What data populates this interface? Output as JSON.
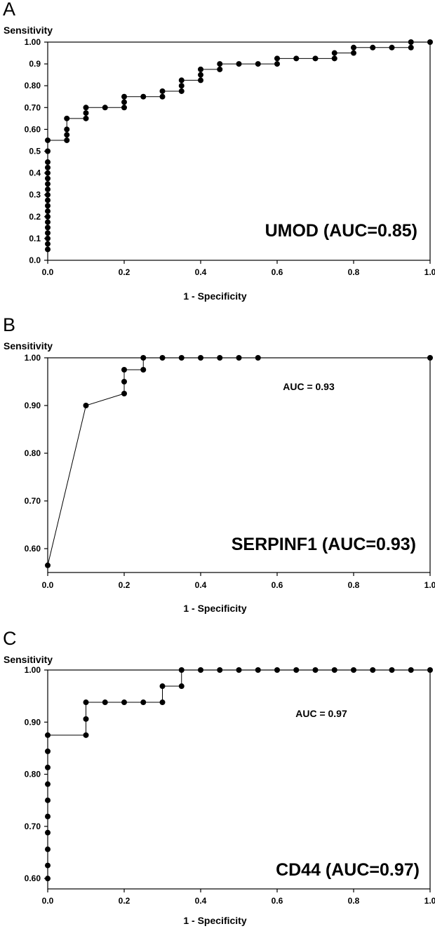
{
  "chart_data": [
    {
      "type": "line",
      "panel_label": "A",
      "ylabel": "Sensitivity",
      "xlabel": "1 - Specificity",
      "annotation": "UMOD (AUC=0.85)",
      "xlim": [
        0,
        1.0
      ],
      "ylim": [
        0,
        1.0
      ],
      "xticks": [
        {
          "v": 0.0,
          "label": "0.0"
        },
        {
          "v": 0.2,
          "label": "0.2"
        },
        {
          "v": 0.4,
          "label": "0.4"
        },
        {
          "v": 0.6,
          "label": "0.6"
        },
        {
          "v": 0.8,
          "label": "0.8"
        },
        {
          "v": 1.0,
          "label": "1.0"
        }
      ],
      "yticks": [
        {
          "v": 0.0,
          "label": "0.0"
        },
        {
          "v": 0.1,
          "label": "0.1"
        },
        {
          "v": 0.2,
          "label": "0.2"
        },
        {
          "v": 0.3,
          "label": "0.3"
        },
        {
          "v": 0.4,
          "label": "0.4"
        },
        {
          "v": 0.5,
          "label": "0.5"
        },
        {
          "v": 0.6,
          "label": "0.60"
        },
        {
          "v": 0.7,
          "label": "0.70"
        },
        {
          "v": 0.8,
          "label": "0.80"
        },
        {
          "v": 0.9,
          "label": "0.9"
        },
        {
          "v": 1.0,
          "label": "1.00"
        }
      ],
      "x": [
        0,
        0,
        0,
        0,
        0,
        0,
        0,
        0,
        0,
        0,
        0,
        0,
        0,
        0,
        0,
        0,
        0,
        0,
        0,
        0.05,
        0.05,
        0.05,
        0.05,
        0.1,
        0.1,
        0.1,
        0.15,
        0.2,
        0.2,
        0.2,
        0.25,
        0.3,
        0.3,
        0.35,
        0.35,
        0.35,
        0.4,
        0.4,
        0.4,
        0.45,
        0.45,
        0.5,
        0.55,
        0.6,
        0.6,
        0.65,
        0.7,
        0.75,
        0.75,
        0.8,
        0.8,
        0.85,
        0.9,
        0.95,
        0.95,
        1.0
      ],
      "y": [
        0.05,
        0.075,
        0.1,
        0.125,
        0.15,
        0.175,
        0.2,
        0.225,
        0.25,
        0.275,
        0.3,
        0.325,
        0.35,
        0.375,
        0.4,
        0.425,
        0.45,
        0.5,
        0.55,
        0.55,
        0.575,
        0.6,
        0.65,
        0.65,
        0.675,
        0.7,
        0.7,
        0.7,
        0.725,
        0.75,
        0.75,
        0.75,
        0.775,
        0.775,
        0.8,
        0.825,
        0.825,
        0.85,
        0.875,
        0.875,
        0.9,
        0.9,
        0.9,
        0.9,
        0.925,
        0.925,
        0.925,
        0.925,
        0.95,
        0.95,
        0.975,
        0.975,
        0.975,
        0.975,
        1.0,
        1.0
      ]
    },
    {
      "type": "line",
      "panel_label": "B",
      "ylabel": "Sensitivity",
      "xlabel": "1 - Specificity",
      "annotation": "SERPINF1 (AUC=0.93)",
      "annotation_small": "AUC = 0.93",
      "xlim": [
        0,
        1.0
      ],
      "ylim": [
        0.55,
        1.0
      ],
      "xticks": [
        {
          "v": 0.0,
          "label": "0.0"
        },
        {
          "v": 0.2,
          "label": "0.2"
        },
        {
          "v": 0.4,
          "label": "0.4"
        },
        {
          "v": 0.6,
          "label": "0.6"
        },
        {
          "v": 0.8,
          "label": "0.8"
        },
        {
          "v": 1.0,
          "label": "1.0"
        }
      ],
      "yticks": [
        {
          "v": 0.6,
          "label": "0.60"
        },
        {
          "v": 0.7,
          "label": "0.70"
        },
        {
          "v": 0.8,
          "label": "0.80"
        },
        {
          "v": 0.9,
          "label": "0.90"
        },
        {
          "v": 1.0,
          "label": "1.00"
        }
      ],
      "x": [
        0,
        0.1,
        0.2,
        0.2,
        0.2,
        0.25,
        0.25,
        0.3,
        0.35,
        0.4,
        0.45,
        0.5,
        0.55,
        1.0
      ],
      "y": [
        0.565,
        0.9,
        0.925,
        0.95,
        0.975,
        0.975,
        1.0,
        1.0,
        1.0,
        1.0,
        1.0,
        1.0,
        1.0,
        1.0
      ]
    },
    {
      "type": "line",
      "panel_label": "C",
      "ylabel": "Sensitivity",
      "xlabel": "1 - Specificity",
      "annotation": "CD44 (AUC=0.97)",
      "annotation_small": "AUC = 0.97",
      "xlim": [
        0,
        1.0
      ],
      "ylim": [
        0.58,
        1.0
      ],
      "xticks": [
        {
          "v": 0.0,
          "label": "0.0"
        },
        {
          "v": 0.2,
          "label": "0.2"
        },
        {
          "v": 0.4,
          "label": "0.4"
        },
        {
          "v": 0.6,
          "label": "0.6"
        },
        {
          "v": 0.8,
          "label": "0.8"
        },
        {
          "v": 1.0,
          "label": "1.0"
        }
      ],
      "yticks": [
        {
          "v": 0.6,
          "label": "0.60"
        },
        {
          "v": 0.7,
          "label": "0.70"
        },
        {
          "v": 0.8,
          "label": "0.80"
        },
        {
          "v": 0.9,
          "label": "0.90"
        },
        {
          "v": 1.0,
          "label": "1.00"
        }
      ],
      "x": [
        0,
        0,
        0,
        0,
        0,
        0,
        0,
        0,
        0,
        0,
        0.1,
        0.1,
        0.1,
        0.15,
        0.2,
        0.25,
        0.3,
        0.3,
        0.35,
        0.35,
        0.4,
        0.45,
        0.5,
        0.55,
        0.6,
        0.65,
        0.7,
        0.75,
        0.8,
        0.85,
        0.9,
        0.95,
        1.0
      ],
      "y": [
        0.6,
        0.625,
        0.656,
        0.688,
        0.719,
        0.75,
        0.781,
        0.813,
        0.844,
        0.875,
        0.875,
        0.906,
        0.938,
        0.938,
        0.938,
        0.938,
        0.938,
        0.969,
        0.969,
        1.0,
        1.0,
        1.0,
        1.0,
        1.0,
        1.0,
        1.0,
        1.0,
        1.0,
        1.0,
        1.0,
        1.0,
        1.0,
        1.0
      ]
    }
  ]
}
